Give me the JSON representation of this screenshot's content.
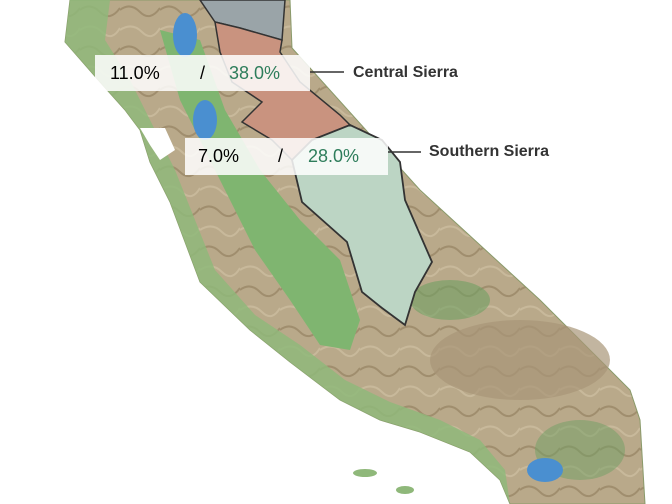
{
  "regions": [
    {
      "name": "Central Sierra",
      "values": [
        "11.0%",
        "38.0%"
      ],
      "separator": "/"
    },
    {
      "name": "Southern Sierra",
      "values": [
        "7.0%",
        "28.0%"
      ],
      "separator": "/"
    }
  ]
}
